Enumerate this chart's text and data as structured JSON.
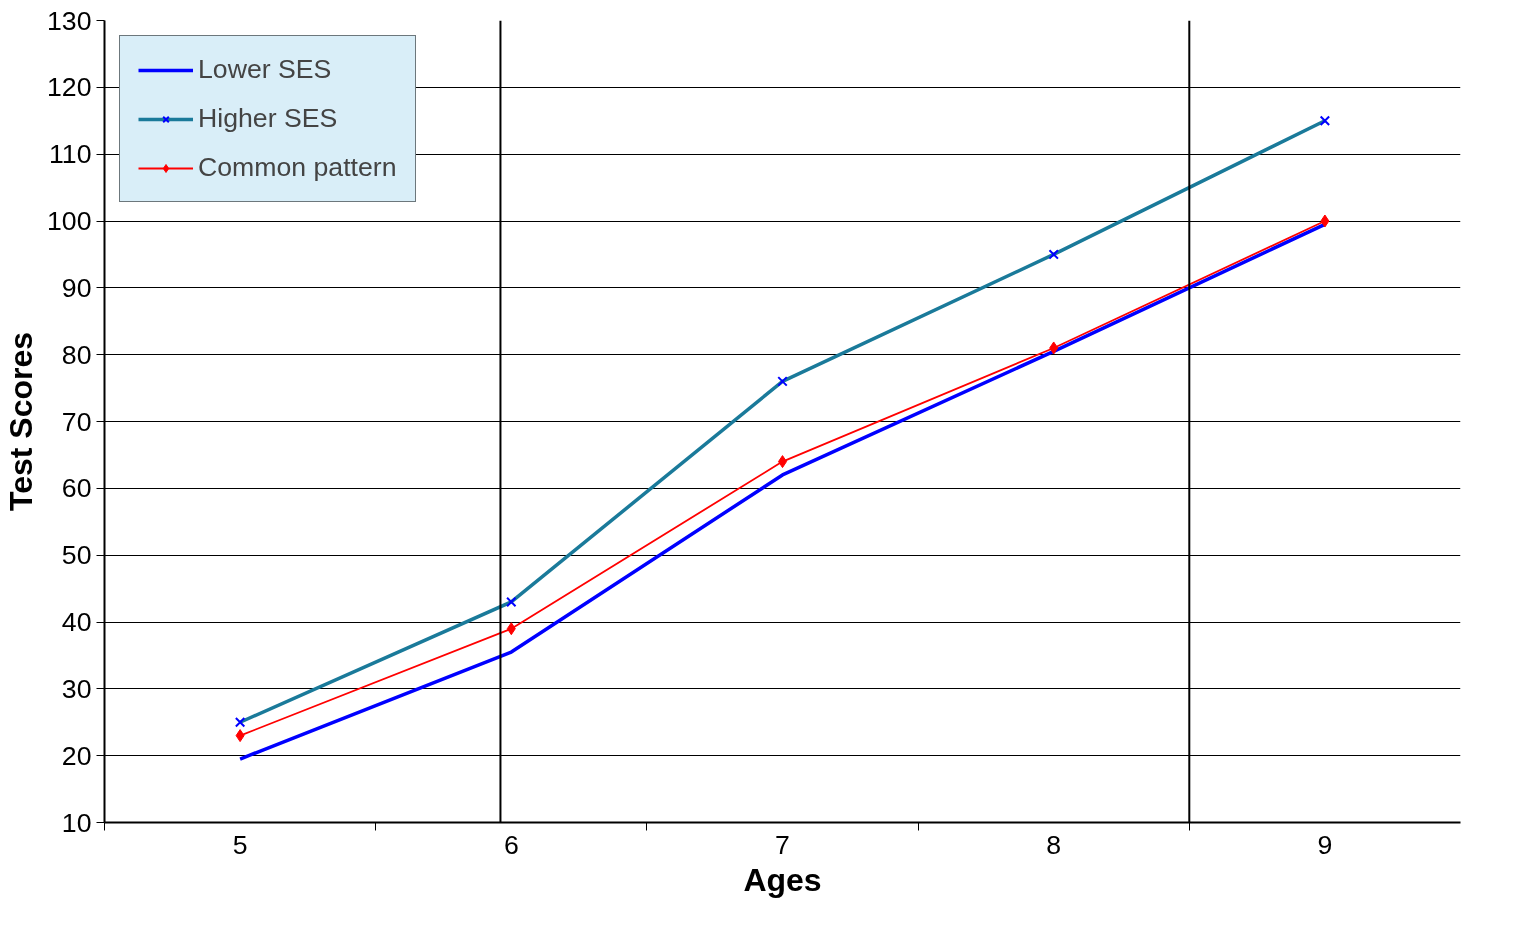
{
  "chart_data": {
    "type": "line",
    "xlabel": "Ages",
    "ylabel": "Test Scores",
    "x": [
      5,
      6,
      7,
      8,
      9
    ],
    "xlim": [
      4.5,
      9.5
    ],
    "xticks": [
      {
        "value": 4.5,
        "label": null
      },
      5,
      {
        "value": 5.5,
        "label": null
      },
      6,
      {
        "value": 6.5,
        "label": null
      },
      7,
      {
        "value": 7.5,
        "label": null
      },
      8,
      {
        "value": 8.5,
        "label": null
      },
      9
    ],
    "ylim": [
      10,
      130
    ],
    "yticks": [
      10,
      20,
      30,
      40,
      50,
      60,
      70,
      80,
      90,
      100,
      110,
      120,
      130
    ],
    "grid": "y",
    "legend": "top left",
    "series": [
      {
        "name": "Lower SES",
        "color": "#0000ff",
        "marker": "none",
        "values": [
          19.5,
          35.5,
          62,
          80.5,
          99.5
        ]
      },
      {
        "name": "Higher SES",
        "color": "#1a7a9a",
        "marker": "cross",
        "values": [
          25,
          43,
          76,
          95,
          115
        ]
      },
      {
        "name": "Common pattern",
        "color": "#ff0000",
        "marker": "diamond",
        "values": [
          23,
          39,
          64,
          81,
          100
        ]
      }
    ],
    "ref_lines": [
      {
        "axis": "x",
        "value": 5.96,
        "color": "#000000"
      },
      {
        "axis": "x",
        "value": 8.5,
        "color": "#000000"
      }
    ]
  }
}
